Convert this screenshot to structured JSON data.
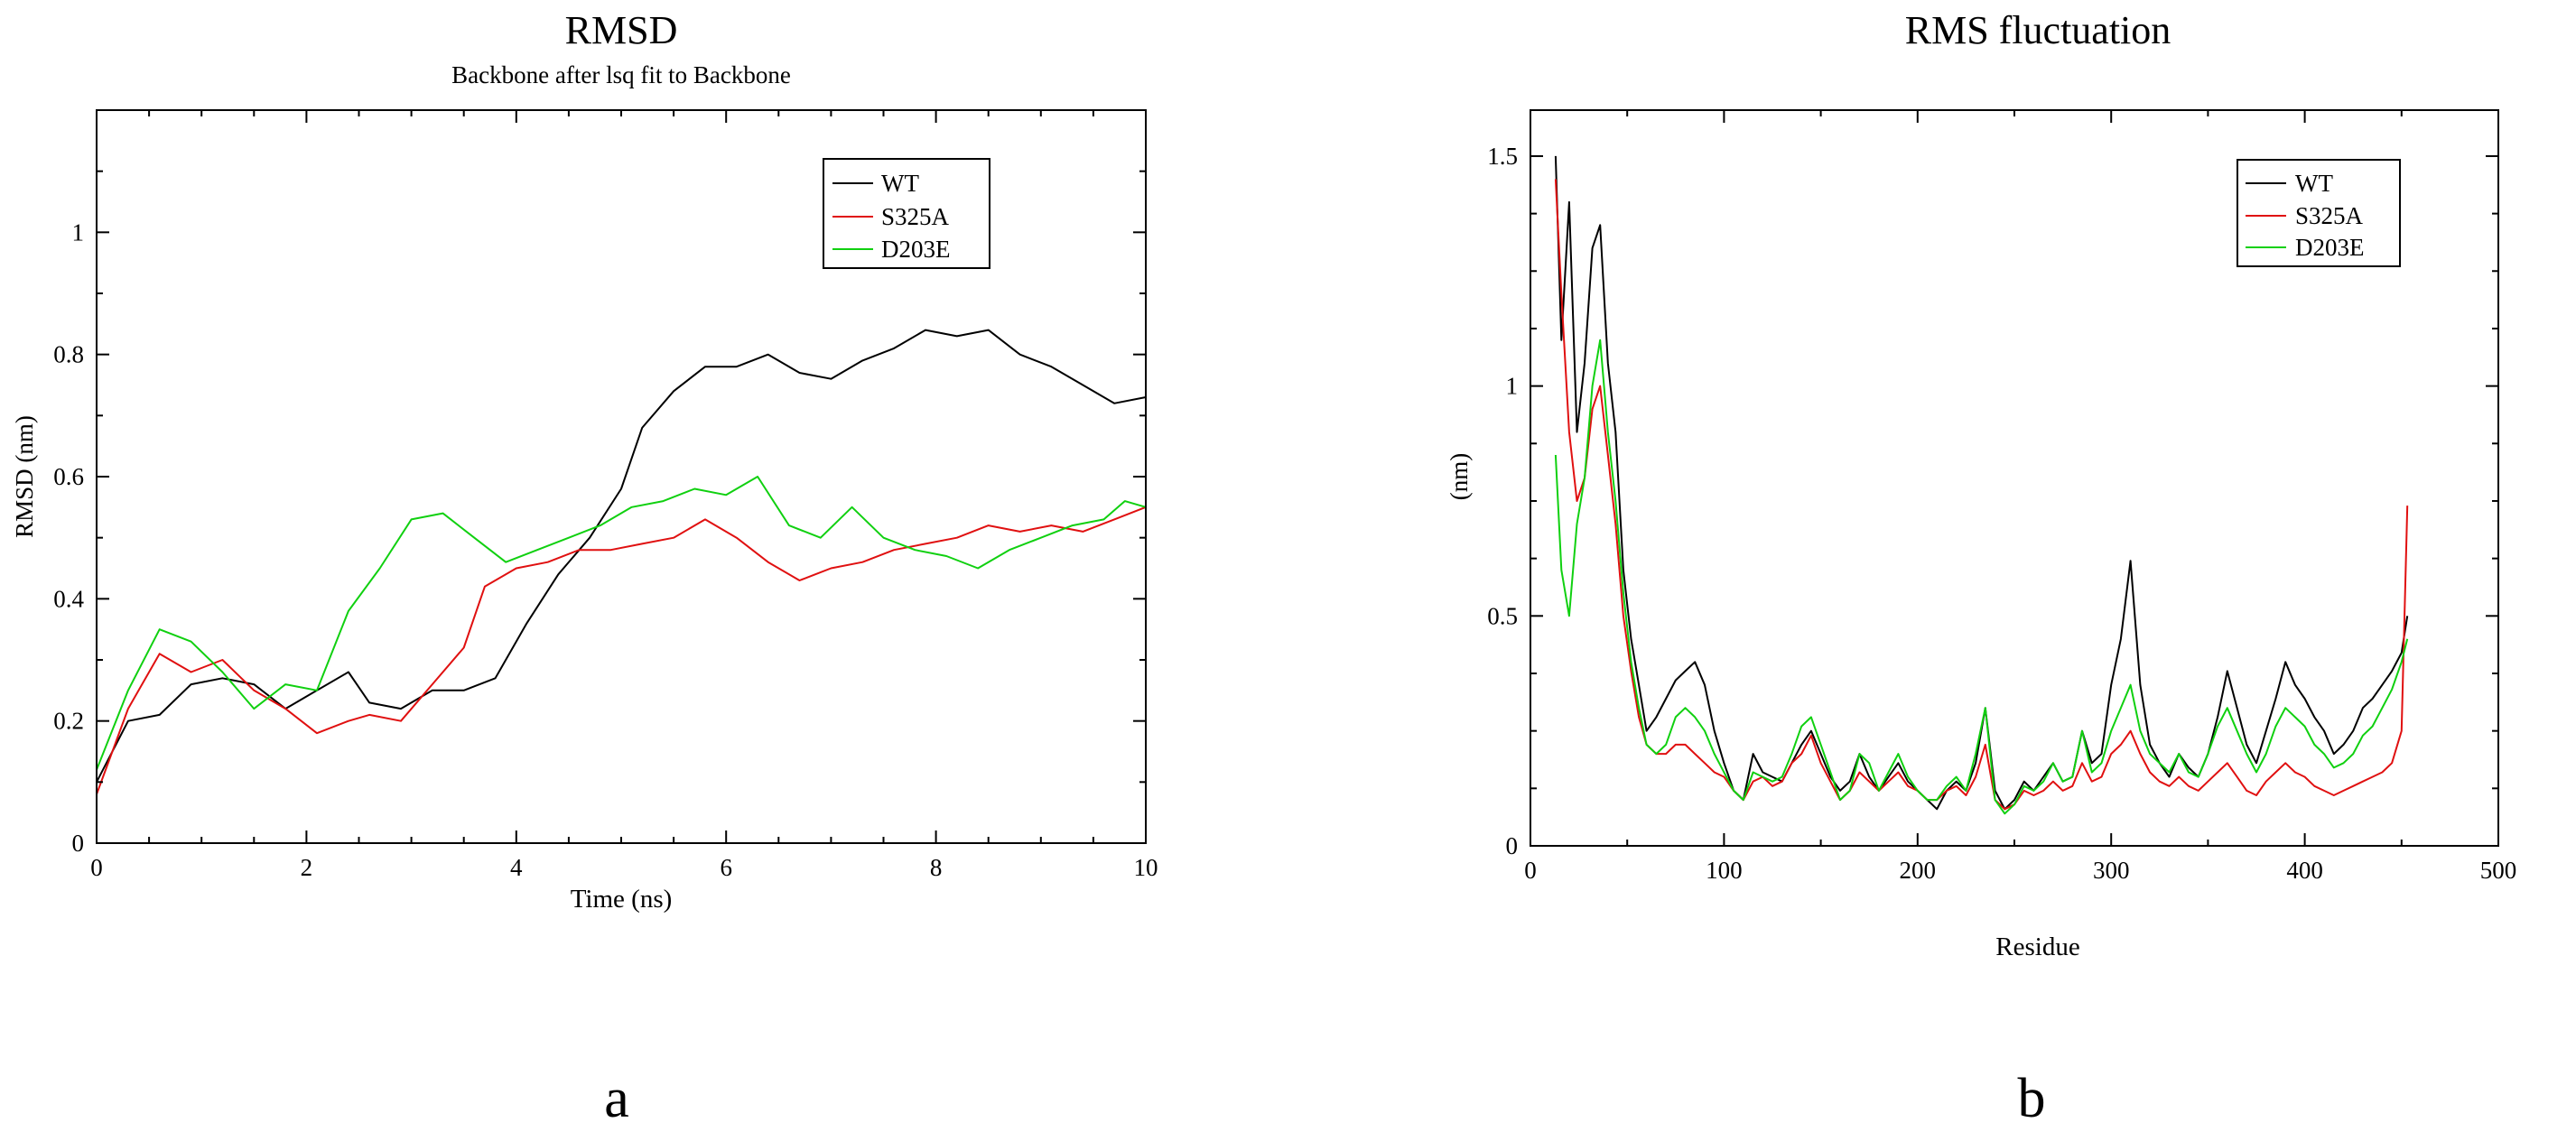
{
  "chart_data": [
    {
      "type": "line",
      "panel_label": "a",
      "title": "RMSD",
      "subtitle": "Backbone after lsq fit to Backbone",
      "xlabel": "Time (ns)",
      "ylabel": "RMSD (nm)",
      "xlim": [
        0,
        10
      ],
      "ylim": [
        0,
        1.2
      ],
      "xticks": [
        "0",
        "2",
        "4",
        "6",
        "8",
        "10"
      ],
      "yticks": [
        "0",
        "0.2",
        "0.4",
        "0.6",
        "0.8",
        "1"
      ],
      "legend_position": "top-right",
      "grid": false,
      "series": [
        {
          "name": "WT",
          "color": "#000000",
          "x": [
            0,
            0.3,
            0.6,
            0.9,
            1.2,
            1.5,
            1.8,
            2.1,
            2.4,
            2.6,
            2.9,
            3.2,
            3.5,
            3.8,
            4.1,
            4.4,
            4.7,
            5.0,
            5.2,
            5.5,
            5.8,
            6.1,
            6.4,
            6.7,
            7.0,
            7.3,
            7.6,
            7.9,
            8.2,
            8.5,
            8.8,
            9.1,
            9.4,
            9.7,
            10
          ],
          "y": [
            0.1,
            0.2,
            0.21,
            0.26,
            0.27,
            0.26,
            0.22,
            0.25,
            0.28,
            0.23,
            0.22,
            0.25,
            0.25,
            0.27,
            0.36,
            0.44,
            0.5,
            0.58,
            0.68,
            0.74,
            0.78,
            0.78,
            0.8,
            0.77,
            0.76,
            0.79,
            0.81,
            0.84,
            0.83,
            0.84,
            0.8,
            0.78,
            0.75,
            0.72,
            0.73
          ]
        },
        {
          "name": "S325A",
          "color": "#e01010",
          "x": [
            0,
            0.3,
            0.6,
            0.9,
            1.2,
            1.5,
            1.8,
            2.1,
            2.4,
            2.6,
            2.9,
            3.2,
            3.5,
            3.7,
            4.0,
            4.3,
            4.6,
            4.9,
            5.2,
            5.5,
            5.8,
            6.1,
            6.4,
            6.7,
            7.0,
            7.3,
            7.6,
            7.9,
            8.2,
            8.5,
            8.8,
            9.1,
            9.4,
            9.7,
            10
          ],
          "y": [
            0.08,
            0.22,
            0.31,
            0.28,
            0.3,
            0.25,
            0.22,
            0.18,
            0.2,
            0.21,
            0.2,
            0.26,
            0.32,
            0.42,
            0.45,
            0.46,
            0.48,
            0.48,
            0.49,
            0.5,
            0.53,
            0.5,
            0.46,
            0.43,
            0.45,
            0.46,
            0.48,
            0.49,
            0.5,
            0.52,
            0.51,
            0.52,
            0.51,
            0.53,
            0.55
          ]
        },
        {
          "name": "D203E",
          "color": "#10d010",
          "x": [
            0,
            0.3,
            0.6,
            0.9,
            1.2,
            1.5,
            1.8,
            2.1,
            2.4,
            2.7,
            3.0,
            3.3,
            3.6,
            3.9,
            4.2,
            4.5,
            4.8,
            5.1,
            5.4,
            5.7,
            6.0,
            6.3,
            6.6,
            6.9,
            7.2,
            7.5,
            7.8,
            8.1,
            8.4,
            8.7,
            9.0,
            9.3,
            9.6,
            9.8,
            10
          ],
          "y": [
            0.12,
            0.25,
            0.35,
            0.33,
            0.28,
            0.22,
            0.26,
            0.25,
            0.38,
            0.45,
            0.53,
            0.54,
            0.5,
            0.46,
            0.48,
            0.5,
            0.52,
            0.55,
            0.56,
            0.58,
            0.57,
            0.6,
            0.52,
            0.5,
            0.55,
            0.5,
            0.48,
            0.47,
            0.45,
            0.48,
            0.5,
            0.52,
            0.53,
            0.56,
            0.55
          ]
        }
      ]
    },
    {
      "type": "line",
      "panel_label": "b",
      "title": "RMS fluctuation",
      "xlabel": "Residue",
      "ylabel": "(nm)",
      "xlim": [
        0,
        500
      ],
      "ylim": [
        0,
        1.6
      ],
      "xticks": [
        "0",
        "100",
        "200",
        "300",
        "400",
        "500"
      ],
      "yticks": [
        "0",
        "0.5",
        "1",
        "1.5"
      ],
      "legend_position": "top-right",
      "grid": false,
      "series": [
        {
          "name": "WT",
          "color": "#000000",
          "x": [
            13,
            16,
            20,
            24,
            28,
            32,
            36,
            40,
            44,
            48,
            52,
            56,
            60,
            65,
            70,
            75,
            80,
            85,
            90,
            95,
            100,
            105,
            110,
            115,
            120,
            125,
            130,
            135,
            140,
            145,
            150,
            155,
            160,
            165,
            170,
            175,
            180,
            185,
            190,
            195,
            200,
            205,
            210,
            215,
            220,
            225,
            230,
            235,
            240,
            245,
            250,
            255,
            260,
            265,
            270,
            275,
            280,
            285,
            290,
            295,
            300,
            305,
            310,
            315,
            320,
            325,
            330,
            335,
            340,
            345,
            350,
            355,
            360,
            365,
            370,
            375,
            380,
            385,
            390,
            395,
            400,
            405,
            410,
            415,
            420,
            425,
            430,
            435,
            440,
            445,
            450,
            453
          ],
          "y": [
            1.5,
            1.1,
            1.4,
            0.9,
            1.05,
            1.3,
            1.35,
            1.05,
            0.9,
            0.6,
            0.45,
            0.35,
            0.25,
            0.28,
            0.32,
            0.36,
            0.38,
            0.4,
            0.35,
            0.25,
            0.18,
            0.12,
            0.1,
            0.2,
            0.16,
            0.15,
            0.14,
            0.18,
            0.22,
            0.25,
            0.2,
            0.15,
            0.12,
            0.14,
            0.2,
            0.15,
            0.12,
            0.15,
            0.18,
            0.14,
            0.12,
            0.1,
            0.08,
            0.12,
            0.14,
            0.12,
            0.18,
            0.3,
            0.12,
            0.08,
            0.1,
            0.14,
            0.12,
            0.15,
            0.18,
            0.14,
            0.15,
            0.25,
            0.18,
            0.2,
            0.35,
            0.45,
            0.62,
            0.35,
            0.22,
            0.18,
            0.15,
            0.2,
            0.17,
            0.15,
            0.2,
            0.28,
            0.38,
            0.3,
            0.22,
            0.18,
            0.25,
            0.32,
            0.4,
            0.35,
            0.32,
            0.28,
            0.25,
            0.2,
            0.22,
            0.25,
            0.3,
            0.32,
            0.35,
            0.38,
            0.42,
            0.5
          ]
        },
        {
          "name": "S325A",
          "color": "#e01010",
          "x": [
            13,
            16,
            20,
            24,
            28,
            32,
            36,
            40,
            44,
            48,
            52,
            56,
            60,
            65,
            70,
            75,
            80,
            85,
            90,
            95,
            100,
            105,
            110,
            115,
            120,
            125,
            130,
            135,
            140,
            145,
            150,
            155,
            160,
            165,
            170,
            175,
            180,
            185,
            190,
            195,
            200,
            205,
            210,
            215,
            220,
            225,
            230,
            235,
            240,
            245,
            250,
            255,
            260,
            265,
            270,
            275,
            280,
            285,
            290,
            295,
            300,
            305,
            310,
            315,
            320,
            325,
            330,
            335,
            340,
            345,
            350,
            355,
            360,
            365,
            370,
            375,
            380,
            385,
            390,
            395,
            400,
            405,
            410,
            415,
            420,
            425,
            430,
            435,
            440,
            445,
            450,
            453
          ],
          "y": [
            1.45,
            1.2,
            0.9,
            0.75,
            0.8,
            0.95,
            1.0,
            0.85,
            0.7,
            0.5,
            0.38,
            0.28,
            0.22,
            0.2,
            0.2,
            0.22,
            0.22,
            0.2,
            0.18,
            0.16,
            0.15,
            0.12,
            0.1,
            0.14,
            0.15,
            0.13,
            0.14,
            0.18,
            0.2,
            0.24,
            0.18,
            0.14,
            0.1,
            0.12,
            0.16,
            0.14,
            0.12,
            0.14,
            0.16,
            0.13,
            0.12,
            0.1,
            0.1,
            0.12,
            0.13,
            0.11,
            0.15,
            0.22,
            0.1,
            0.08,
            0.09,
            0.12,
            0.11,
            0.12,
            0.14,
            0.12,
            0.13,
            0.18,
            0.14,
            0.15,
            0.2,
            0.22,
            0.25,
            0.2,
            0.16,
            0.14,
            0.13,
            0.15,
            0.13,
            0.12,
            0.14,
            0.16,
            0.18,
            0.15,
            0.12,
            0.11,
            0.14,
            0.16,
            0.18,
            0.16,
            0.15,
            0.13,
            0.12,
            0.11,
            0.12,
            0.13,
            0.14,
            0.15,
            0.16,
            0.18,
            0.25,
            0.74
          ]
        },
        {
          "name": "D203E",
          "color": "#10d010",
          "x": [
            13,
            16,
            20,
            24,
            28,
            32,
            36,
            40,
            44,
            48,
            52,
            56,
            60,
            65,
            70,
            75,
            80,
            85,
            90,
            95,
            100,
            105,
            110,
            115,
            120,
            125,
            130,
            135,
            140,
            145,
            150,
            155,
            160,
            165,
            170,
            175,
            180,
            185,
            190,
            195,
            200,
            205,
            210,
            215,
            220,
            225,
            230,
            235,
            240,
            245,
            250,
            255,
            260,
            265,
            270,
            275,
            280,
            285,
            290,
            295,
            300,
            305,
            310,
            315,
            320,
            325,
            330,
            335,
            340,
            345,
            350,
            355,
            360,
            365,
            370,
            375,
            380,
            385,
            390,
            395,
            400,
            405,
            410,
            415,
            420,
            425,
            430,
            435,
            440,
            445,
            450,
            453
          ],
          "y": [
            0.85,
            0.6,
            0.5,
            0.7,
            0.8,
            1.0,
            1.1,
            0.9,
            0.75,
            0.55,
            0.4,
            0.3,
            0.22,
            0.2,
            0.22,
            0.28,
            0.3,
            0.28,
            0.25,
            0.2,
            0.16,
            0.12,
            0.1,
            0.16,
            0.15,
            0.14,
            0.15,
            0.2,
            0.26,
            0.28,
            0.22,
            0.16,
            0.1,
            0.12,
            0.2,
            0.18,
            0.12,
            0.16,
            0.2,
            0.15,
            0.12,
            0.1,
            0.1,
            0.13,
            0.15,
            0.12,
            0.2,
            0.3,
            0.1,
            0.07,
            0.09,
            0.13,
            0.12,
            0.14,
            0.18,
            0.14,
            0.15,
            0.25,
            0.16,
            0.18,
            0.25,
            0.3,
            0.35,
            0.25,
            0.2,
            0.18,
            0.16,
            0.2,
            0.16,
            0.15,
            0.2,
            0.26,
            0.3,
            0.25,
            0.2,
            0.16,
            0.2,
            0.26,
            0.3,
            0.28,
            0.26,
            0.22,
            0.2,
            0.17,
            0.18,
            0.2,
            0.24,
            0.26,
            0.3,
            0.34,
            0.4,
            0.45
          ]
        }
      ]
    }
  ]
}
